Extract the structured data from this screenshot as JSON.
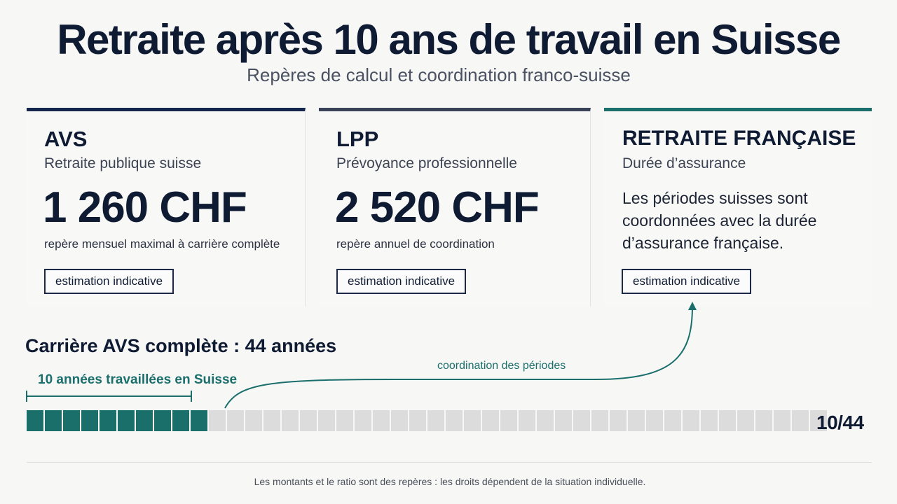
{
  "header": {
    "title": "Retraite après 10 ans de travail en Suisse",
    "subtitle": "Repères de calcul et coordination franco-suisse"
  },
  "cards": [
    {
      "title": "AVS",
      "subtitle": "Retraite publique suisse",
      "amount": "1 260 CHF",
      "amount_note": "repère mensuel maximal à carrière complète",
      "badge": "estimation indicative"
    },
    {
      "title": "LPP",
      "subtitle": "Prévoyance professionnelle",
      "amount": "2 520 CHF",
      "amount_note": "repère annuel de coordination",
      "badge": "estimation indicative"
    },
    {
      "title": "RETRAITE FRANÇAISE",
      "subtitle": "Durée d’assurance",
      "body": "Les périodes suisses sont coordonnées avec la durée d’assurance française.",
      "badge": "estimation indicative"
    }
  ],
  "career": {
    "title": "Carrière AVS complète : 44 années",
    "worked_label": "10 années travaillées en Suisse",
    "coordination_label": "coordination des périodes",
    "years_worked": 10,
    "years_total": 44,
    "ratio_text": "10/44"
  },
  "footnote": "Les montants et le ratio sont des repères : les droits dépendent de la situation individuelle.",
  "colors": {
    "navy": "#0f1b33",
    "teal": "#1b6f6b",
    "empty_segment": "#dcdcdc"
  }
}
